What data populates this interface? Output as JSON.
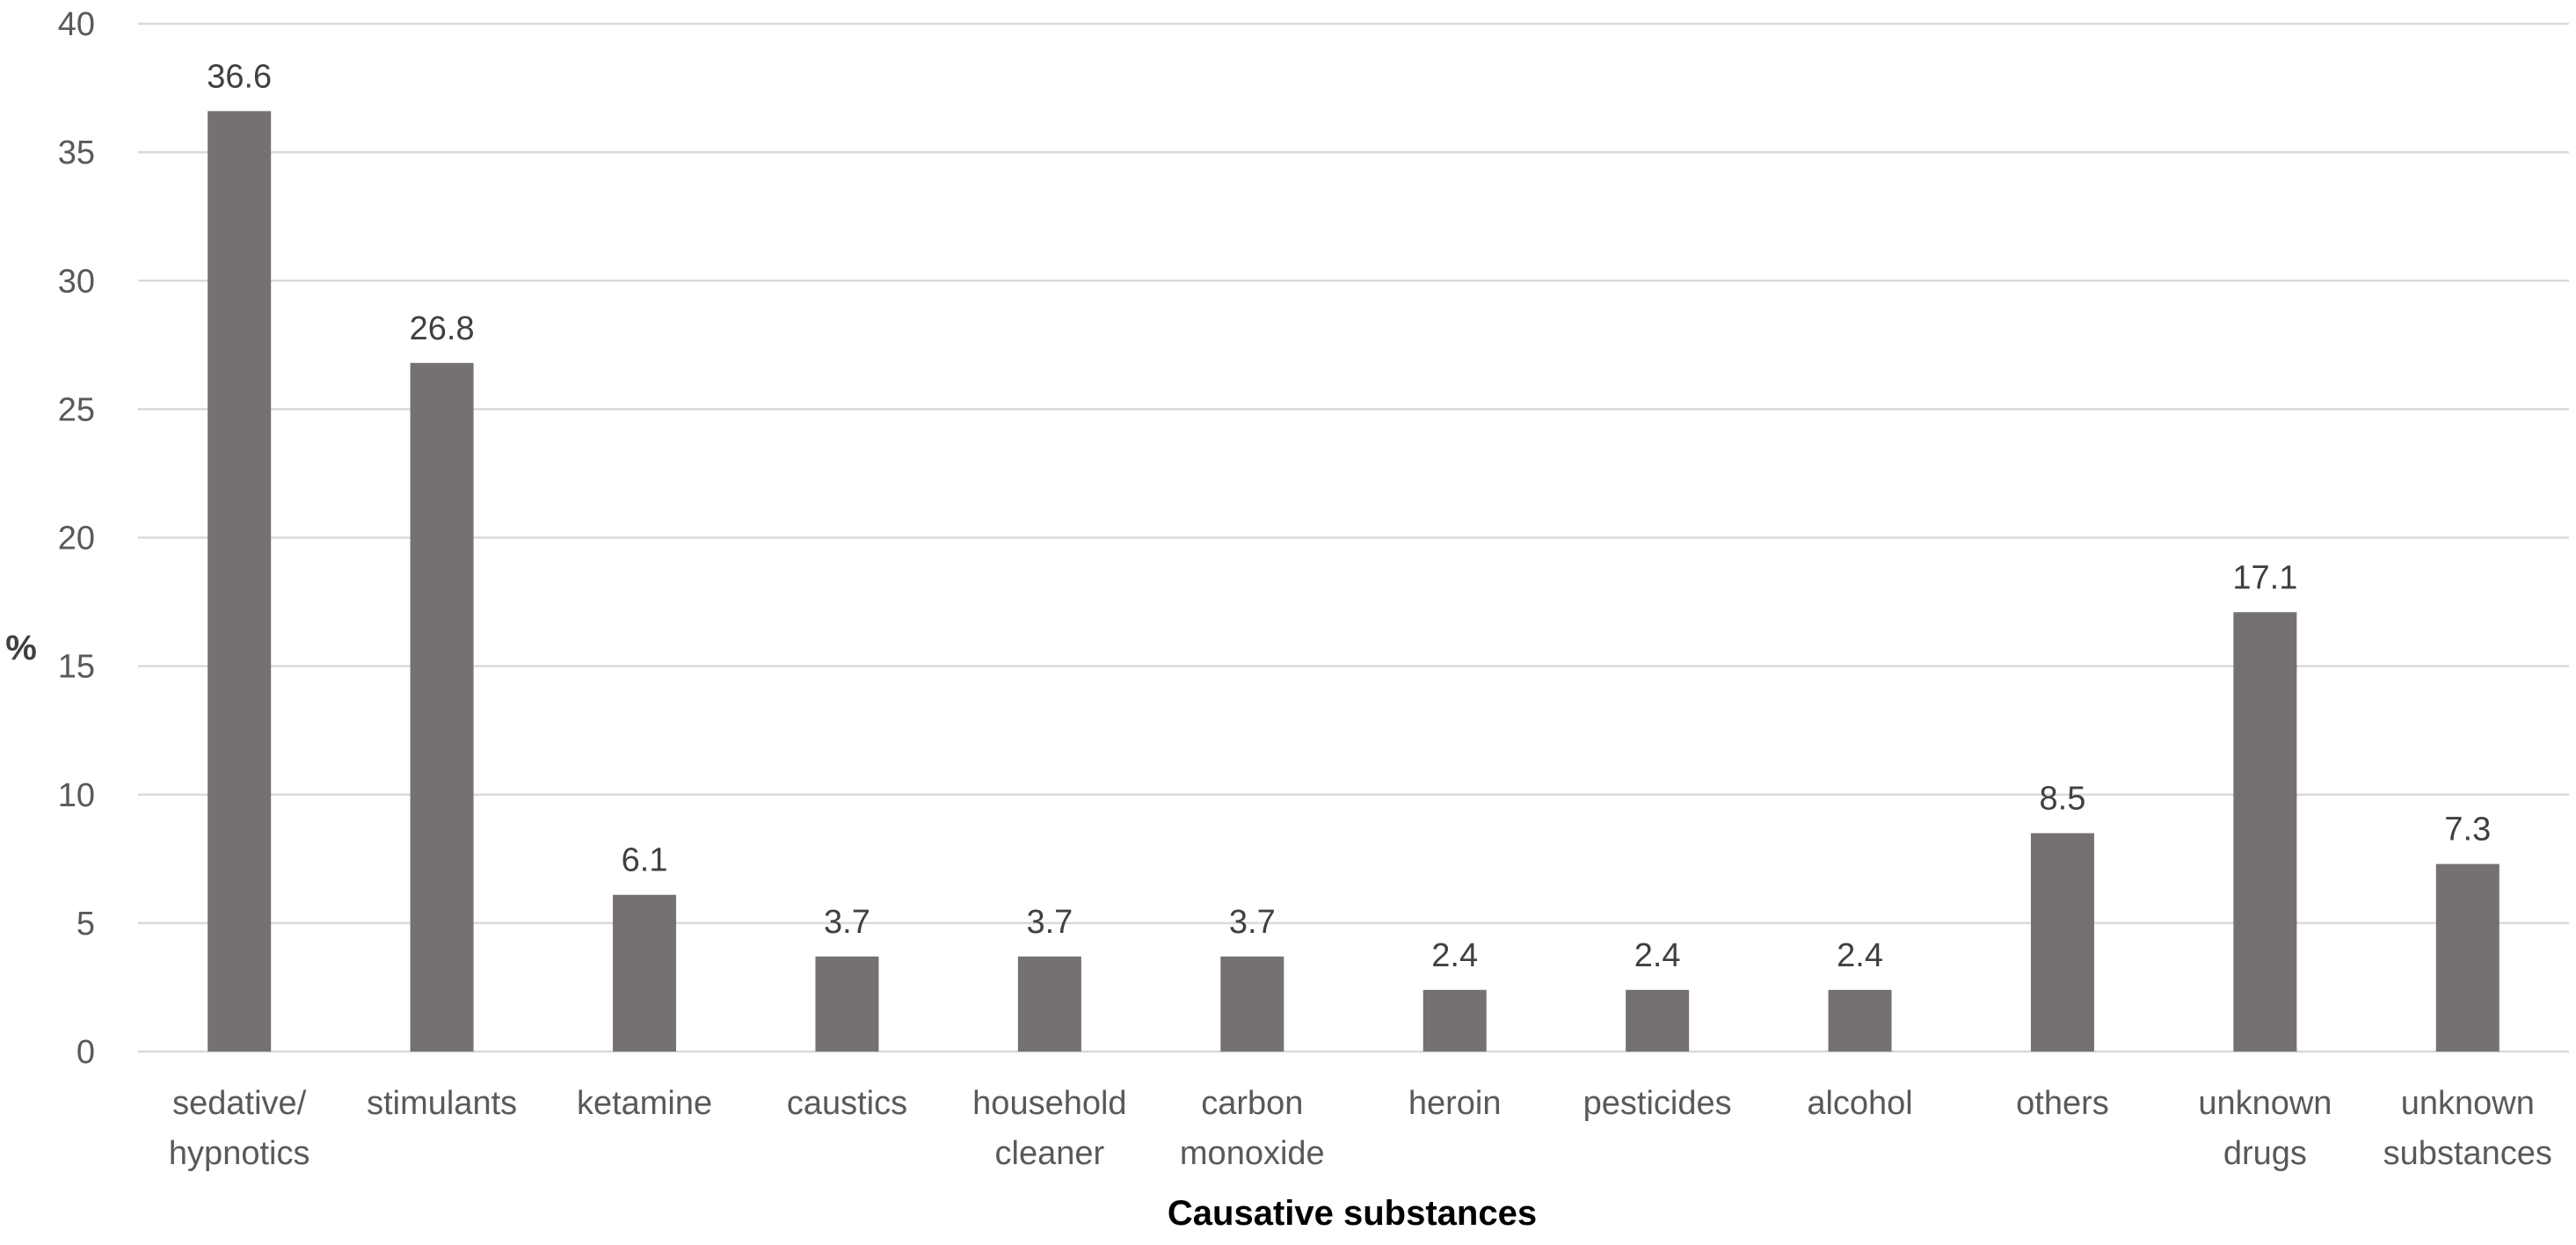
{
  "chart_data": {
    "type": "bar",
    "categories": [
      [
        "sedative/",
        "hypnotics"
      ],
      [
        "stimulants"
      ],
      [
        "ketamine"
      ],
      [
        "caustics"
      ],
      [
        "household",
        "cleaner"
      ],
      [
        "carbon",
        "monoxide"
      ],
      [
        "heroin"
      ],
      [
        "pesticides"
      ],
      [
        "alcohol"
      ],
      [
        "others"
      ],
      [
        "unknown",
        "drugs"
      ],
      [
        "unknown",
        "substances"
      ]
    ],
    "values": [
      36.6,
      26.8,
      6.1,
      3.7,
      3.7,
      3.7,
      2.4,
      2.4,
      2.4,
      8.5,
      17.1,
      7.3
    ],
    "data_labels": [
      "36.6",
      "26.8",
      "6.1",
      "3.7",
      "3.7",
      "3.7",
      "2.4",
      "2.4",
      "2.4",
      "8.5",
      "17.1",
      "7.3"
    ],
    "title": "",
    "xlabel": "Causative substances",
    "ylabel": "%",
    "ylim": [
      0,
      40
    ],
    "yticks": [
      0,
      5,
      10,
      15,
      20,
      25,
      30,
      35,
      40
    ],
    "grid": true,
    "legend": "none",
    "bar_color": "#767171",
    "grid_color": "#d9d9d9"
  }
}
